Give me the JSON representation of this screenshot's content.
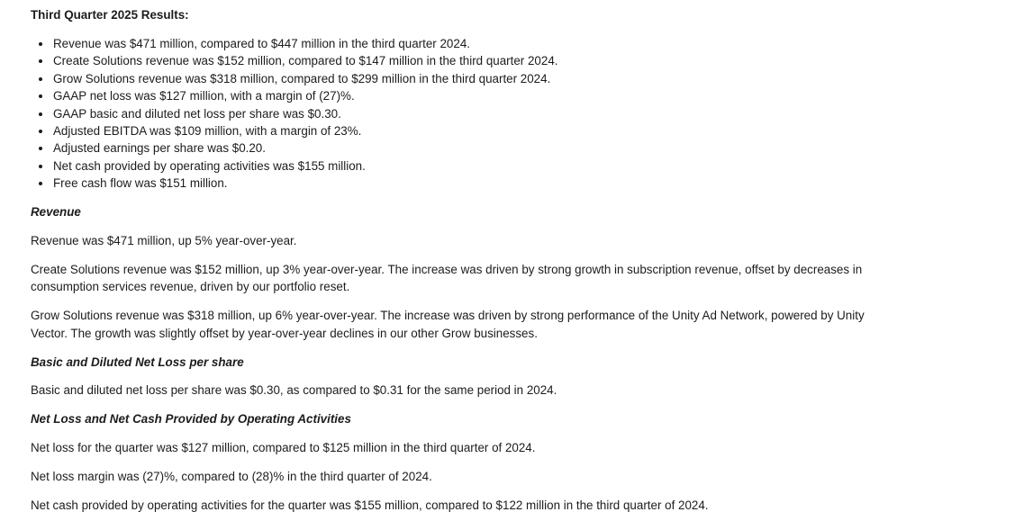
{
  "title": "Third Quarter 2025 Results:",
  "highlights": [
    "Revenue was $471 million, compared to $447 million in the third quarter 2024.",
    "Create Solutions revenue was $152 million, compared to $147 million in the third quarter 2024.",
    "Grow Solutions revenue was $318 million, compared to $299 million in the third quarter 2024.",
    "GAAP net loss was $127 million, with a margin of (27)%.",
    "GAAP basic and diluted net loss per share was $0.30.",
    "Adjusted EBITDA was $109 million, with a margin of 23%.",
    "Adjusted earnings per share was $0.20.",
    "Net cash provided by operating activities was $155 million.",
    "Free cash flow was $151 million."
  ],
  "revenue": {
    "heading": "Revenue",
    "paragraphs": [
      "Revenue was $471 million, up 5% year-over-year.",
      "Create Solutions revenue was $152 million, up 3% year-over-year. The increase was driven by strong growth in subscription revenue, offset by decreases in consumption services revenue, driven by our portfolio reset.",
      "Grow Solutions revenue was $318 million, up 6% year-over-year. The increase was driven by strong performance of the Unity Ad Network, powered by Unity Vector. The growth was slightly offset by year-over-year declines in our other Grow businesses."
    ]
  },
  "eps": {
    "heading": "Basic and Diluted Net Loss per share",
    "paragraphs": [
      "Basic and diluted net loss per share was $0.30, as compared to $0.31 for the same period in 2024."
    ]
  },
  "netloss": {
    "heading": "Net Loss and Net Cash Provided by Operating Activities",
    "paragraphs": [
      "Net loss for the quarter was $127 million, compared to $125 million in the third quarter of 2024.",
      "Net loss margin was (27)%, compared to (28)% in the third quarter of 2024.",
      "Net cash provided by operating activities for the quarter was $155 million, compared to $122 million in the third quarter of 2024."
    ]
  }
}
